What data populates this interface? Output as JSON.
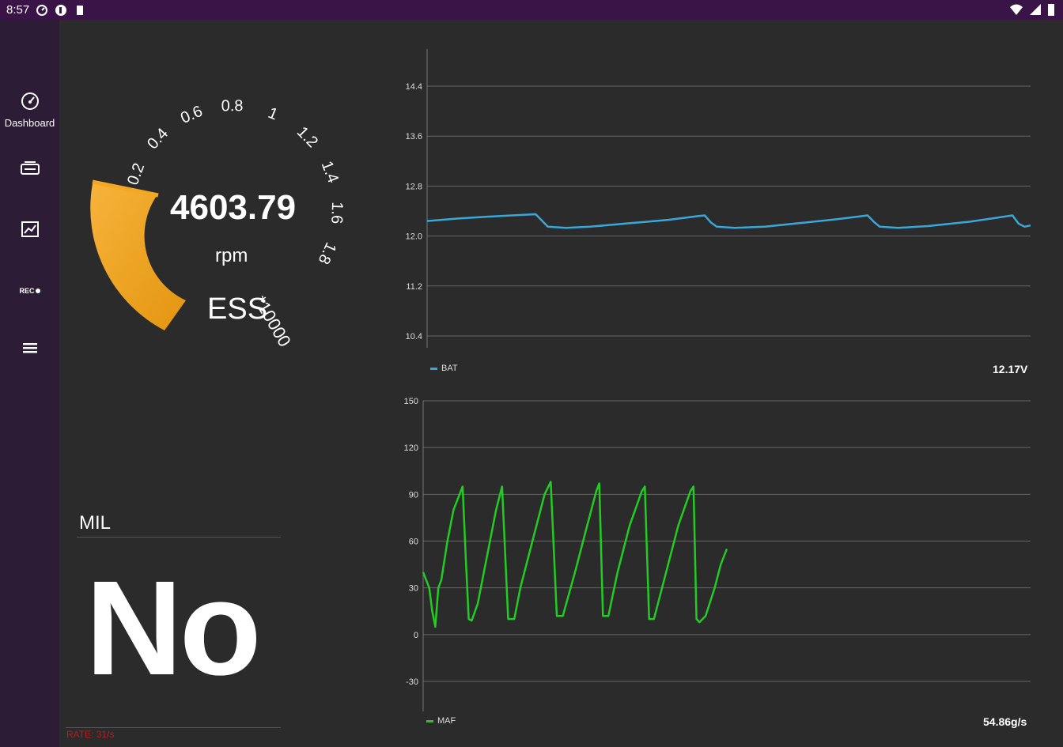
{
  "status_bar": {
    "time": "8:57",
    "icons": [
      "speedometer-icon",
      "app-icon",
      "sd-card-icon",
      "wifi-icon",
      "battery-icon"
    ]
  },
  "sidebar": {
    "items": [
      {
        "icon": "speedometer-icon",
        "label": "Dashboard"
      },
      {
        "icon": "engine-icon",
        "label": ""
      },
      {
        "icon": "chart-icon",
        "label": ""
      },
      {
        "icon": "rec-icon",
        "label": "REC"
      },
      {
        "icon": "menu-icon",
        "label": ""
      }
    ]
  },
  "gauge": {
    "value": "4603.79",
    "unit": "rpm",
    "name": "ESS",
    "multiplier": "*10000",
    "ticks": [
      "0.2",
      "0.4",
      "0.6",
      "0.8",
      "1",
      "1.2",
      "1.4",
      "1.6",
      "1.8"
    ],
    "needle_fraction": 0.4603,
    "colors": {
      "arc": "#f5a623",
      "arc_dark": "#e08e0b"
    }
  },
  "mil": {
    "title": "MIL",
    "value": "No"
  },
  "rate": "RATE: 31/s",
  "chart_data": [
    {
      "type": "line",
      "series": [
        {
          "name": "BAT",
          "color": "#3aa7d9"
        }
      ],
      "value_display": "12.17V",
      "yticks": [
        "14.4",
        "13.6",
        "12.8",
        "12.0",
        "11.2",
        "10.4"
      ],
      "ylim": [
        10.4,
        14.4
      ],
      "points": [
        [
          0,
          12.24
        ],
        [
          5,
          12.28
        ],
        [
          10,
          12.31
        ],
        [
          18,
          12.35
        ],
        [
          19,
          12.25
        ],
        [
          20,
          12.15
        ],
        [
          23,
          12.13
        ],
        [
          27,
          12.15
        ],
        [
          33,
          12.2
        ],
        [
          40,
          12.26
        ],
        [
          45,
          12.32
        ],
        [
          46,
          12.33
        ],
        [
          47,
          12.22
        ],
        [
          48,
          12.15
        ],
        [
          51,
          12.13
        ],
        [
          56,
          12.15
        ],
        [
          62,
          12.21
        ],
        [
          68,
          12.27
        ],
        [
          73,
          12.33
        ],
        [
          74,
          12.23
        ],
        [
          75,
          12.15
        ],
        [
          78,
          12.13
        ],
        [
          83,
          12.16
        ],
        [
          90,
          12.23
        ],
        [
          97,
          12.33
        ],
        [
          98,
          12.2
        ],
        [
          99,
          12.15
        ],
        [
          100,
          12.17
        ]
      ]
    },
    {
      "type": "line",
      "series": [
        {
          "name": "MAF",
          "color": "#22cc22"
        }
      ],
      "value_display": "54.86g/s",
      "yticks": [
        "150",
        "120",
        "90",
        "60",
        "30",
        "0",
        "-30"
      ],
      "ylim": [
        -30,
        150
      ],
      "points": [
        [
          0,
          40
        ],
        [
          1,
          30
        ],
        [
          1.5,
          15
        ],
        [
          2,
          5
        ],
        [
          2.5,
          30
        ],
        [
          3,
          35
        ],
        [
          4,
          60
        ],
        [
          5,
          80
        ],
        [
          6,
          90
        ],
        [
          6.5,
          95
        ],
        [
          7,
          50
        ],
        [
          7.5,
          10
        ],
        [
          8,
          9
        ],
        [
          9,
          20
        ],
        [
          10,
          40
        ],
        [
          11,
          60
        ],
        [
          12,
          80
        ],
        [
          13,
          95
        ],
        [
          14,
          10
        ],
        [
          15,
          10
        ],
        [
          16,
          30
        ],
        [
          18,
          60
        ],
        [
          20,
          90
        ],
        [
          21,
          98
        ],
        [
          22,
          12
        ],
        [
          23,
          12
        ],
        [
          25,
          40
        ],
        [
          27,
          70
        ],
        [
          28.5,
          92
        ],
        [
          29,
          97
        ],
        [
          29.6,
          12
        ],
        [
          30.5,
          12
        ],
        [
          32,
          40
        ],
        [
          34,
          70
        ],
        [
          36,
          92
        ],
        [
          36.5,
          95
        ],
        [
          37.2,
          10
        ],
        [
          38,
          10
        ],
        [
          40,
          40
        ],
        [
          42,
          70
        ],
        [
          44,
          92
        ],
        [
          44.5,
          95
        ],
        [
          45,
          10
        ],
        [
          45.5,
          8
        ],
        [
          46.5,
          12
        ],
        [
          48,
          30
        ],
        [
          49,
          45
        ],
        [
          50,
          55
        ]
      ],
      "xmax": 100
    }
  ]
}
